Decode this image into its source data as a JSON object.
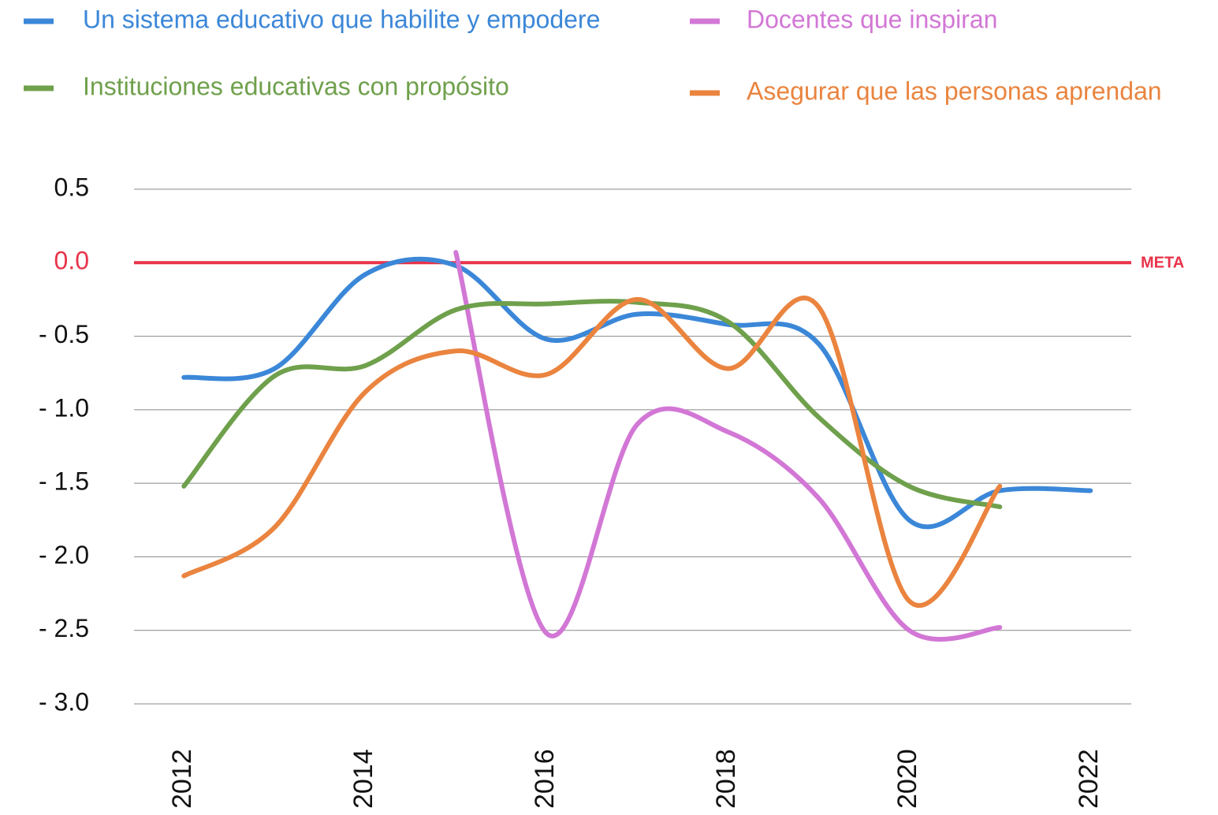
{
  "chart_data": {
    "type": "line",
    "x": [
      2012,
      2013,
      2014,
      2015,
      2016,
      2017,
      2018,
      2019,
      2020,
      2021,
      2022
    ],
    "series": [
      {
        "name": "Un sistema educativo que habilite y empodere",
        "color": "#3b87d8",
        "values": [
          -0.78,
          -0.72,
          -0.08,
          -0.02,
          -0.52,
          -0.35,
          -0.42,
          -0.55,
          -1.75,
          -1.55,
          -1.55
        ]
      },
      {
        "name": "Docentes que inspiran",
        "color": "#d277d5",
        "values": [
          null,
          null,
          null,
          0.07,
          -2.52,
          -1.1,
          -1.15,
          -1.6,
          -2.5,
          -2.48,
          null
        ]
      },
      {
        "name": "Instituciones educativas con propósito",
        "color": "#6fa04c",
        "values": [
          -1.52,
          -0.77,
          -0.7,
          -0.32,
          -0.28,
          -0.27,
          -0.4,
          -1.05,
          -1.52,
          -1.66,
          null
        ]
      },
      {
        "name": "Asegurar que las personas aprendan",
        "color": "#ea843f",
        "values": [
          -2.13,
          -1.8,
          -0.88,
          -0.6,
          -0.76,
          -0.25,
          -0.72,
          -0.3,
          -2.3,
          -1.52,
          null
        ]
      }
    ],
    "xlim": [
      2011.45,
      2022.45
    ],
    "xticks": [
      2012,
      2014,
      2016,
      2018,
      2020,
      2022
    ],
    "ylim": [
      -3,
      0.5
    ],
    "yticks": [
      {
        "value": -3,
        "label": "- 3.0"
      },
      {
        "value": -2.5,
        "label": "- 2.5"
      },
      {
        "value": -2,
        "label": "- 2.0"
      },
      {
        "value": -1.5,
        "label": "- 1.5"
      },
      {
        "value": -1,
        "label": "- 1.0"
      },
      {
        "value": -0.5,
        "label": "- 0.5"
      },
      {
        "value": 0,
        "label": "0.0"
      },
      0.5
    ],
    "grid": true,
    "target_line": {
      "value": 0,
      "label": "META",
      "color": "#e8334a"
    }
  }
}
